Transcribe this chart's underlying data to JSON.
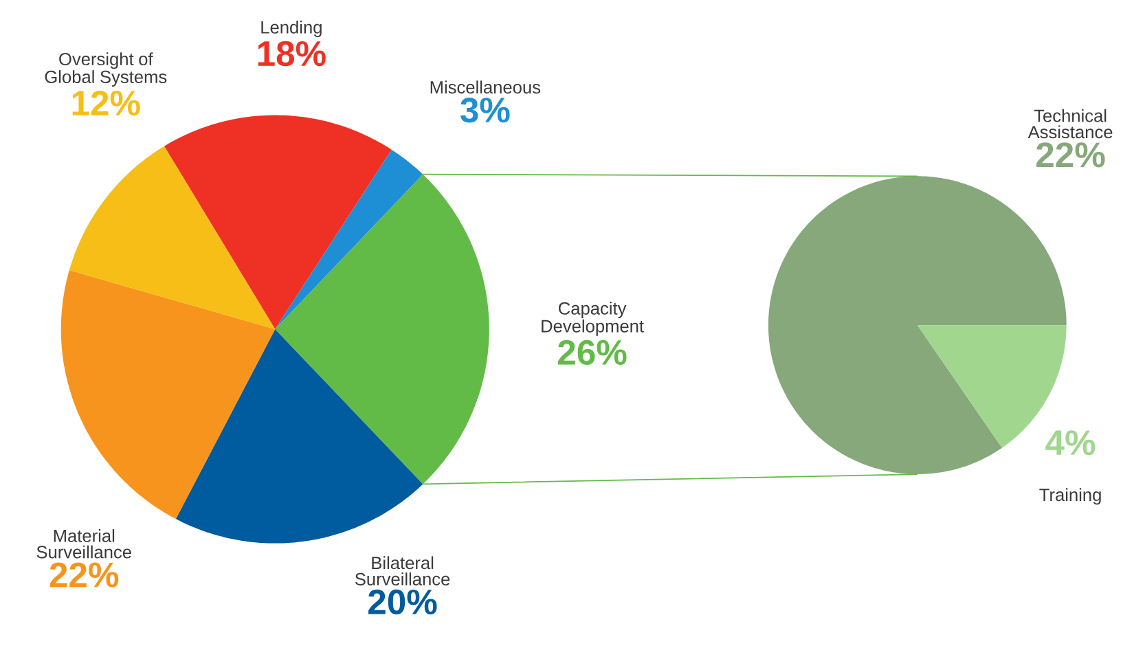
{
  "chart_data": [
    {
      "type": "pie",
      "categories": [
        "Lending",
        "Miscellaneous",
        "Capacity Development",
        "Bilateral Surveillance",
        "Material Surveillance",
        "Oversight of Global Systems"
      ],
      "values": [
        18,
        3,
        26,
        20,
        22,
        12
      ],
      "colors": [
        "#ee3124",
        "#1e8fd5",
        "#62bb46",
        "#005b9f",
        "#f7941d",
        "#f6be16"
      ],
      "value_labels": [
        "18%",
        "3%",
        "26%",
        "20%",
        "22%",
        "12%"
      ]
    },
    {
      "type": "pie",
      "categories": [
        "Technical Assistance",
        "Training"
      ],
      "values": [
        22,
        4
      ],
      "colors": [
        "#86a87a",
        "#a0d68e"
      ],
      "value_labels": [
        "22%",
        "4%"
      ]
    }
  ]
}
